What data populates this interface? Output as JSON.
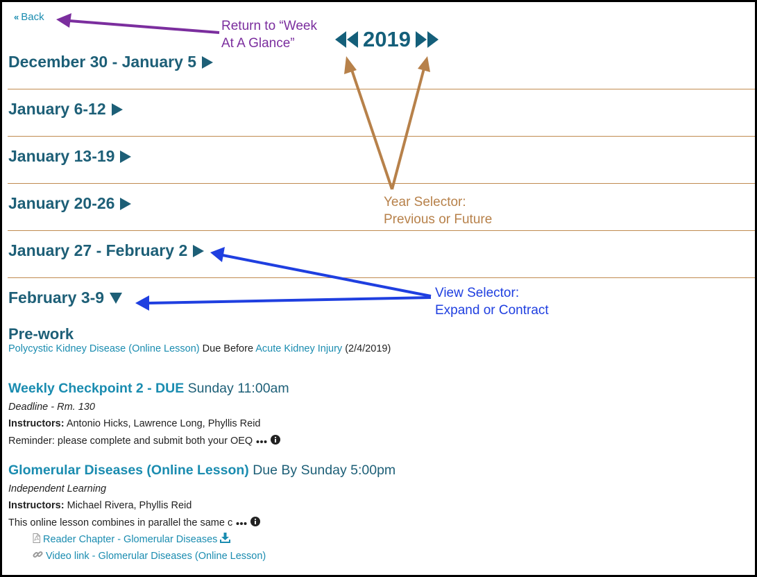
{
  "back": {
    "label": "Back"
  },
  "year": {
    "value": "2019"
  },
  "weeks": [
    {
      "label": "December 30 - January 5",
      "state": "collapsed"
    },
    {
      "label": "January 6-12",
      "state": "collapsed"
    },
    {
      "label": "January 13-19",
      "state": "collapsed"
    },
    {
      "label": "January 20-26",
      "state": "collapsed"
    },
    {
      "label": "January 27 - February 2",
      "state": "collapsed"
    },
    {
      "label": "February 3-9",
      "state": "expanded"
    }
  ],
  "prework": {
    "heading": "Pre-work",
    "item_link": "Polycystic Kidney Disease (Online Lesson)",
    "due_text": "Due Before",
    "target_link": "Acute Kidney Injury",
    "date": "(2/4/2019)"
  },
  "events": [
    {
      "title": "Weekly Checkpoint 2 - DUE",
      "when": "Sunday 11:00am",
      "type": "Deadline - Rm. 130",
      "instructors_label": "Instructors:",
      "instructors": "Antonio Hicks, Lawrence Long, Phyllis Reid",
      "description": "Reminder: please complete and submit both your OEQ"
    },
    {
      "title": "Glomerular Diseases (Online Lesson)",
      "when": "Due By Sunday 5:00pm",
      "type": "Independent Learning",
      "instructors_label": "Instructors:",
      "instructors": "Michael Rivera, Phyllis Reid",
      "description": "This online lesson combines in parallel the same c",
      "attachments": [
        {
          "label": "Reader Chapter - Glomerular Diseases",
          "icon": "pdf-file-icon",
          "action_icon": "download-icon"
        },
        {
          "label": "Video link - Glomerular Diseases (Online Lesson)",
          "icon": "link-icon"
        }
      ]
    }
  ],
  "annotations": {
    "back_note": {
      "line1": "Return to “Week",
      "line2": "At A Glance”",
      "color": "#7b2e9e"
    },
    "year_note": {
      "line1": "Year Selector:",
      "line2": "Previous or Future",
      "color": "#b7814a"
    },
    "view_note": {
      "line1": "View Selector:",
      "line2": "Expand or Contract",
      "color": "#1f3fe0"
    }
  },
  "colors": {
    "heading": "#1d5f77",
    "link": "#1a8cb0",
    "separator": "#c08a4f"
  }
}
